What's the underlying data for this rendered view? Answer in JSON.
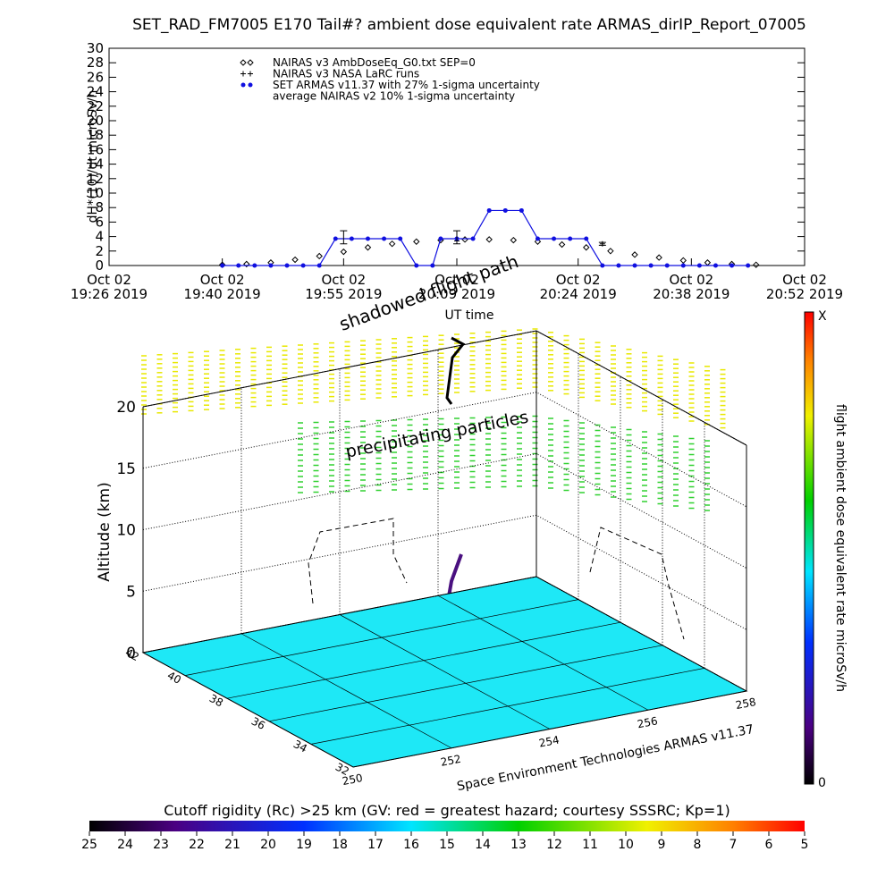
{
  "chart_data": [
    {
      "type": "line",
      "title": "SET_RAD_FM7005  E170 Tail#? ambient dose equivalent rate ARMAS_dirIP_Report_07005",
      "ylabel": "dH*(10)/dt microSv/h",
      "xlabel": "UT time",
      "xlim": [
        "19:26",
        "20:52"
      ],
      "xticks": [
        {
          "value": "19:26",
          "label": "Oct 02\n19:26 2019"
        },
        {
          "value": "19:40",
          "label": "Oct 02\n19:40 2019"
        },
        {
          "value": "19:55",
          "label": "Oct 02\n19:55 2019"
        },
        {
          "value": "20:09",
          "label": "Oct 02\n20:09 2019"
        },
        {
          "value": "20:24",
          "label": "Oct 02\n20:24 2019"
        },
        {
          "value": "20:38",
          "label": "Oct 02\n20:38 2019"
        },
        {
          "value": "20:52",
          "label": "Oct 02\n20:52 2019"
        }
      ],
      "ylim": [
        0,
        30
      ],
      "yticks": [
        0,
        2,
        4,
        6,
        8,
        10,
        12,
        14,
        16,
        18,
        20,
        22,
        24,
        26,
        28,
        30
      ],
      "series": [
        {
          "name": "NAIRAS v3 AmbDoseEq_G0.txt SEP=0",
          "color": "#000000",
          "marker": "diamond",
          "x": [
            "19:40",
            "19:43",
            "19:46",
            "19:49",
            "19:52",
            "19:55",
            "19:58",
            "20:01",
            "20:04",
            "20:07",
            "20:10",
            "20:13",
            "20:16",
            "20:19",
            "20:22",
            "20:25",
            "20:28",
            "20:31",
            "20:34",
            "20:37",
            "20:40",
            "20:43",
            "20:46"
          ],
          "values": [
            0.1,
            0.2,
            0.4,
            0.8,
            1.3,
            1.9,
            2.5,
            3.0,
            3.3,
            3.5,
            3.6,
            3.6,
            3.5,
            3.3,
            2.9,
            2.5,
            2.0,
            1.5,
            1.1,
            0.7,
            0.4,
            0.2,
            0.1
          ]
        },
        {
          "name": "NAIRAS v3 NASA LaRC runs",
          "color": "#000000",
          "marker": "plus",
          "x": [
            "19:40",
            "20:09",
            "20:27"
          ],
          "values": [
            0.1,
            3.4,
            3.0
          ]
        },
        {
          "name": "SET ARMAS v11.37 with 27% 1-sigma uncertainty",
          "color": "#1010e0",
          "marker": "dot",
          "line": true,
          "x": [
            "19:40",
            "19:42",
            "19:44",
            "19:46",
            "19:48",
            "19:50",
            "19:52",
            "19:54",
            "19:56",
            "19:58",
            "20:00",
            "20:02",
            "20:04",
            "20:06",
            "20:07",
            "20:09",
            "20:11",
            "20:13",
            "20:15",
            "20:17",
            "20:19",
            "20:21",
            "20:23",
            "20:25",
            "20:27",
            "20:29",
            "20:31",
            "20:33",
            "20:35",
            "20:37",
            "20:39",
            "20:41",
            "20:43",
            "20:45"
          ],
          "values": [
            0,
            0,
            0,
            0,
            0,
            0,
            0,
            3.7,
            3.7,
            3.7,
            3.7,
            3.7,
            0,
            0,
            3.7,
            3.7,
            3.7,
            7.6,
            7.6,
            7.6,
            3.7,
            3.7,
            3.7,
            3.7,
            0,
            0,
            0,
            0,
            0,
            0,
            0,
            0,
            0,
            0
          ]
        },
        {
          "name": "average NAIRAS v2 10% 1-sigma uncertainty",
          "color": "#000000",
          "marker": "errorbar",
          "x": [
            "19:55",
            "20:09",
            "20:27"
          ],
          "values": [
            3.9,
            3.9,
            3.0
          ],
          "errors": [
            0.9,
            0.9,
            0.2
          ]
        }
      ]
    },
    {
      "type": "box3d",
      "zlabel": "Altitude (km)",
      "zlim": [
        0,
        20
      ],
      "zticks": [
        0,
        5,
        10,
        15,
        20
      ],
      "ylim": [
        32,
        42
      ],
      "yticks": [
        32,
        34,
        36,
        38,
        40,
        42
      ],
      "xlim": [
        250,
        258
      ],
      "xticks": [
        250,
        252,
        254,
        256,
        258
      ],
      "floor_color": "#1ee8f6",
      "annotations": [
        "precipitating particles",
        "shadowed flight path",
        "Space Environment Technologies ARMAS v11.37"
      ],
      "colorbar": {
        "label": "flight ambient dose equivalent rate microSv/h",
        "tick_labels": [
          "X",
          "0"
        ]
      }
    },
    {
      "type": "colorbar",
      "title": "Cutoff rigidity (Rc) >25 km (GV: red = greatest hazard; courtesy SSSRC; Kp=1)",
      "lim": [
        25,
        5
      ],
      "ticks": [
        25,
        24,
        23,
        22,
        21,
        20,
        19,
        18,
        17,
        16,
        15,
        14,
        13,
        12,
        11,
        10,
        9,
        8,
        7,
        6,
        5
      ]
    }
  ]
}
